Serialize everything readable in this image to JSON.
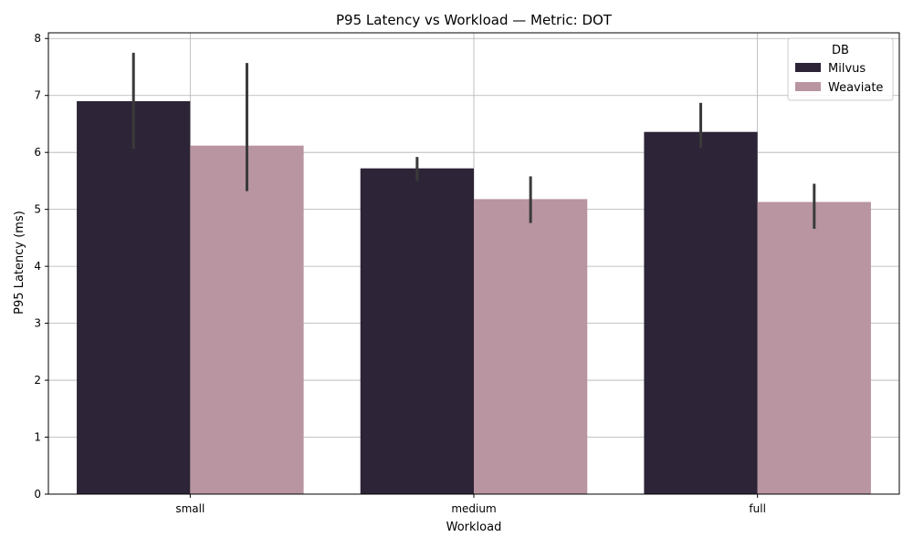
{
  "chart_data": {
    "type": "bar",
    "title": "P95 Latency vs Workload — Metric: DOT",
    "xlabel": "Workload",
    "ylabel": "P95 Latency (ms)",
    "categories": [
      "small",
      "medium",
      "full"
    ],
    "ylim": [
      0,
      8.1
    ],
    "yticks": [
      0,
      1,
      2,
      3,
      4,
      5,
      6,
      7,
      8
    ],
    "grid": true,
    "legend": {
      "title": "DB",
      "placement": "top-right"
    },
    "series": [
      {
        "name": "Milvus",
        "color": "#2d2437",
        "values": [
          6.9,
          5.72,
          6.36
        ],
        "err_low": [
          6.06,
          5.5,
          6.08
        ],
        "err_high": [
          7.75,
          5.92,
          6.87
        ]
      },
      {
        "name": "Weaviate",
        "color": "#b895a0",
        "values": [
          6.12,
          5.18,
          5.13
        ],
        "err_low": [
          5.32,
          4.76,
          4.66
        ],
        "err_high": [
          7.57,
          5.58,
          5.45
        ]
      }
    ]
  }
}
